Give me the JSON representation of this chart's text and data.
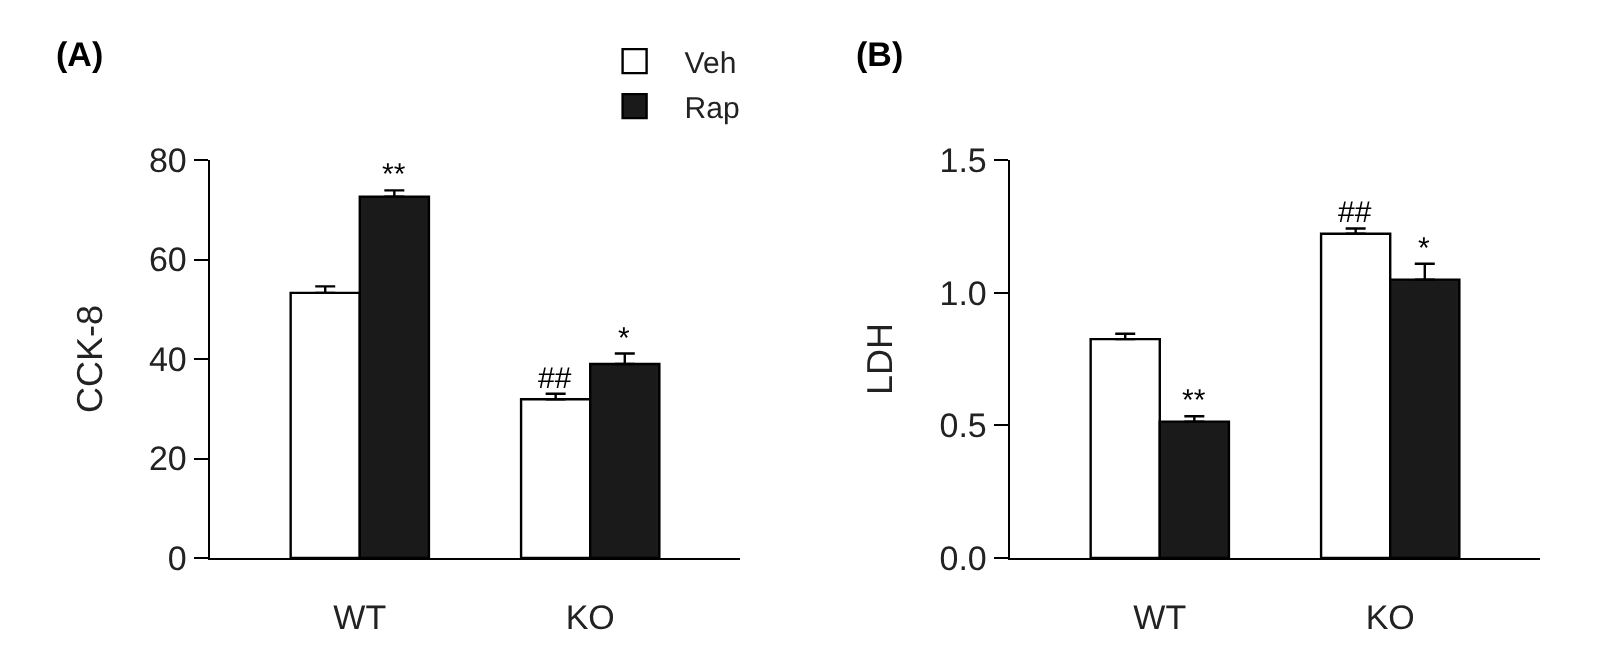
{
  "chart_data": [
    {
      "type": "bar",
      "title": "(A)",
      "ylabel": "CCK-8",
      "categories": [
        "WT",
        "KO"
      ],
      "series": [
        {
          "name": "Veh",
          "color": "#ffffff",
          "values": [
            53.3,
            31.9
          ],
          "errors": [
            1.3,
            1.1
          ]
        },
        {
          "name": "Rap",
          "color": "#1a1a1a",
          "values": [
            72.6,
            39.0
          ],
          "errors": [
            1.3,
            2.1
          ]
        }
      ],
      "ylim": [
        0,
        80
      ],
      "yticks": [
        0,
        20,
        40,
        60,
        80
      ],
      "grid": false,
      "legend": "top right",
      "annotations": [
        {
          "text": "**",
          "x": "WT",
          "y": 72.6
        },
        {
          "text": "##",
          "x": "KO",
          "y": 31.9
        },
        {
          "text": "*",
          "x": "KO",
          "y": 39.0
        }
      ]
    },
    {
      "type": "bar",
      "title": "(B)",
      "ylabel": "LDH",
      "categories": [
        "WT",
        "KO"
      ],
      "series": [
        {
          "color": "#ffffff",
          "values": [
            0.825,
            1.222
          ],
          "errors": [
            0.02,
            0.02
          ]
        },
        {
          "color": "#1a1a1a",
          "values": [
            0.514,
            1.049
          ],
          "errors": [
            0.02,
            0.06
          ]
        }
      ],
      "ylim": [
        0,
        1.5
      ],
      "yticks": [
        {
          "value": 0,
          "label": "0.0"
        },
        0.5,
        {
          "value": 1,
          "label": "1.0"
        },
        1.5
      ],
      "grid": false,
      "annotations": [
        {
          "text": "**",
          "x": "WT",
          "y": 0.514
        },
        {
          "text": "##",
          "x": "KO",
          "y": 1.222
        },
        {
          "text": "*",
          "x": "KO",
          "y": 1.049
        }
      ]
    }
  ]
}
